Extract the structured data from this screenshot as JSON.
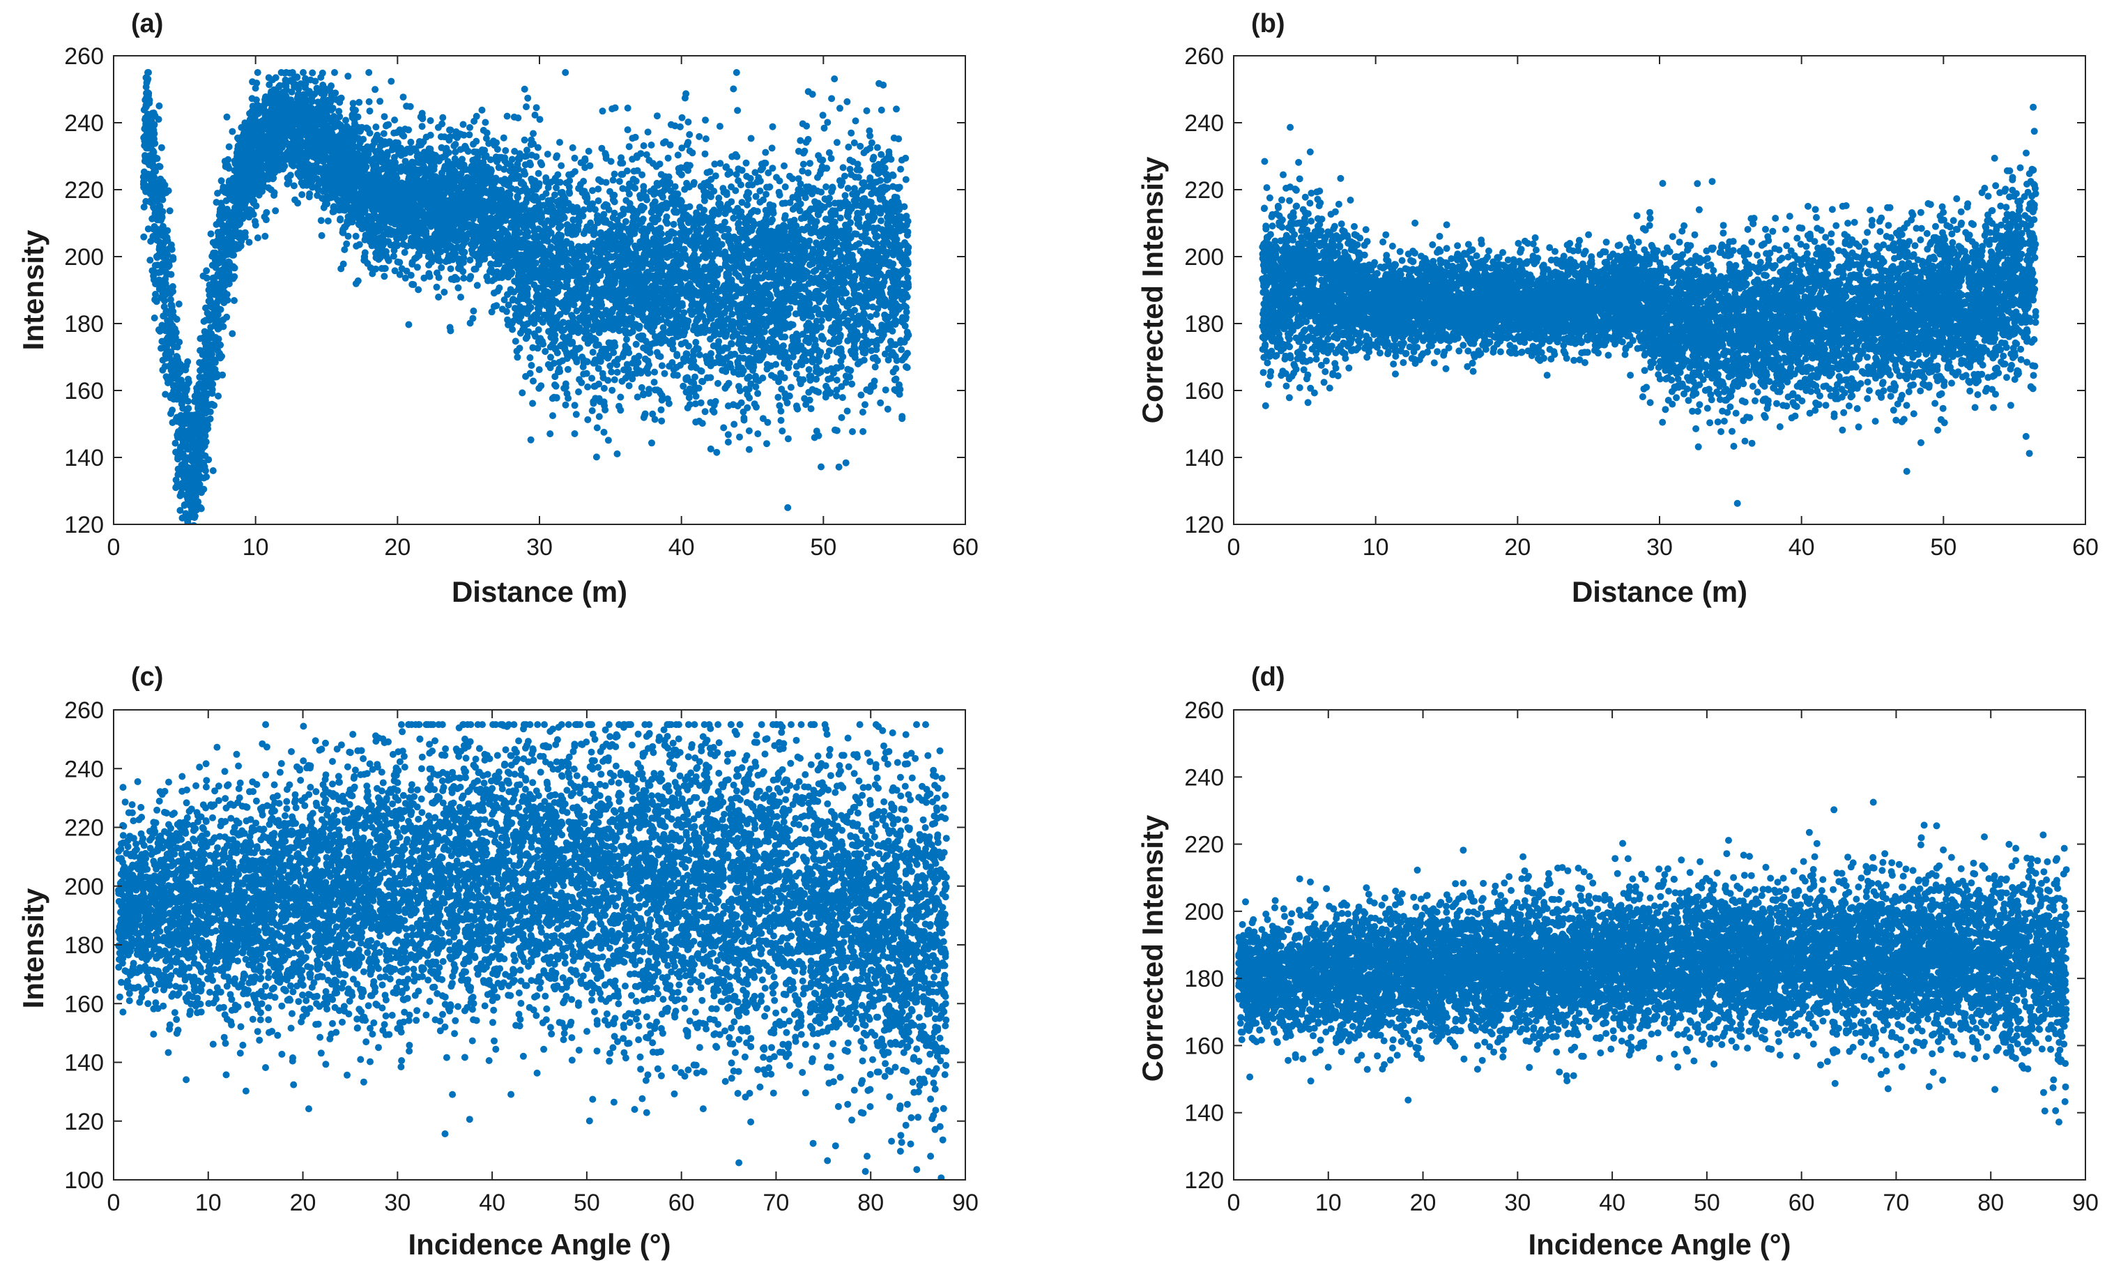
{
  "figure": {
    "marker_color": "#0072BD",
    "axis_color": "#262626"
  },
  "chart_data": [
    {
      "panel": "(a)",
      "type": "scatter",
      "xlabel": "Distance (m)",
      "ylabel": "Intensity",
      "xlim": [
        0,
        60
      ],
      "ylim": [
        120,
        260
      ],
      "xticks": [
        0,
        10,
        20,
        30,
        40,
        50,
        60
      ],
      "yticks": [
        120,
        140,
        160,
        180,
        200,
        220,
        240,
        260
      ],
      "grid": false,
      "series": [
        {
          "name": "points",
          "x": [
            2.1,
            2.3,
            2.6,
            3.0,
            3.5,
            4.0,
            4.6,
            5.2,
            5.6,
            6.2,
            6.8,
            7.5,
            8.3,
            9.2,
            10,
            11,
            12,
            13,
            14,
            15,
            16,
            17,
            18,
            19,
            20,
            21,
            22,
            23,
            24,
            25,
            26,
            27,
            28,
            29,
            30,
            31,
            32,
            33,
            34,
            35,
            36,
            37,
            38,
            39,
            40,
            41,
            42,
            43,
            44,
            45,
            46,
            47,
            48,
            49,
            50,
            51,
            52,
            53,
            54,
            55,
            56
          ],
          "y": [
            225,
            238,
            230,
            215,
            198,
            178,
            155,
            138,
            130,
            152,
            172,
            195,
            212,
            225,
            232,
            236,
            240,
            238,
            235,
            232,
            226,
            222,
            220,
            218,
            216,
            217,
            215,
            214,
            213,
            214,
            216,
            212,
            205,
            200,
            198,
            196,
            194,
            192,
            190,
            192,
            195,
            193,
            190,
            196,
            198,
            188,
            195,
            190,
            192,
            188,
            196,
            190,
            194,
            192,
            196,
            190,
            200,
            194,
            205,
            198,
            195
          ],
          "spread": [
            12,
            14,
            16,
            18,
            20,
            18,
            17,
            16,
            14,
            18,
            18,
            16,
            14,
            12,
            12,
            11,
            10,
            12,
            12,
            12,
            13,
            14,
            14,
            14,
            14,
            14,
            14,
            14,
            14,
            14,
            14,
            15,
            18,
            22,
            22,
            23,
            23,
            24,
            24,
            24,
            24,
            24,
            24,
            23,
            24,
            26,
            24,
            26,
            26,
            26,
            25,
            26,
            25,
            26,
            25,
            26,
            26,
            26,
            26,
            24,
            24
          ]
        }
      ]
    },
    {
      "panel": "(b)",
      "type": "scatter",
      "xlabel": "Distance (m)",
      "ylabel": "Corrected Intensity",
      "xlim": [
        0,
        60
      ],
      "ylim": [
        120,
        260
      ],
      "xticks": [
        0,
        10,
        20,
        30,
        40,
        50,
        60
      ],
      "yticks": [
        120,
        140,
        160,
        180,
        200,
        220,
        240,
        260
      ],
      "grid": false,
      "series": [
        {
          "name": "points",
          "x": [
            2.0,
            3,
            4,
            5,
            6,
            7,
            8,
            9,
            10,
            12,
            14,
            16,
            18,
            20,
            22,
            24,
            26,
            28,
            29,
            30,
            32,
            34,
            36,
            38,
            40,
            42,
            44,
            46,
            48,
            50,
            52,
            54,
            55,
            56,
            56.5
          ],
          "y": [
            188,
            190,
            192,
            193,
            190,
            188,
            188,
            187,
            186,
            186,
            186,
            186,
            186,
            186,
            185,
            186,
            186,
            188,
            188,
            182,
            180,
            178,
            180,
            180,
            182,
            180,
            184,
            182,
            184,
            186,
            186,
            190,
            195,
            195,
            200
          ],
          "spread": [
            15,
            16,
            18,
            18,
            16,
            14,
            12,
            11,
            10,
            9,
            9,
            9,
            9,
            9,
            9,
            9,
            9,
            10,
            11,
            14,
            15,
            16,
            16,
            15,
            16,
            16,
            16,
            16,
            16,
            16,
            16,
            18,
            18,
            20,
            24
          ]
        }
      ]
    },
    {
      "panel": "(c)",
      "type": "scatter",
      "xlabel": "Incidence Angle (°)",
      "ylabel": "Intensity",
      "xlim": [
        0,
        90
      ],
      "ylim": [
        100,
        260
      ],
      "xticks": [
        0,
        10,
        20,
        30,
        40,
        50,
        60,
        70,
        80,
        90
      ],
      "yticks": [
        100,
        120,
        140,
        160,
        180,
        200,
        220,
        240,
        260
      ],
      "grid": false,
      "series": [
        {
          "name": "points",
          "x": [
            0.5,
            5,
            10,
            15,
            20,
            25,
            30,
            35,
            40,
            45,
            50,
            55,
            60,
            65,
            70,
            75,
            80,
            85,
            88
          ],
          "y": [
            192,
            192,
            193,
            194,
            196,
            198,
            200,
            202,
            203,
            203,
            202,
            201,
            200,
            198,
            195,
            192,
            188,
            184,
            180
          ],
          "spread": [
            20,
            22,
            24,
            26,
            28,
            30,
            31,
            32,
            33,
            34,
            34,
            35,
            35,
            35,
            36,
            36,
            37,
            38,
            40
          ]
        }
      ]
    },
    {
      "panel": "(d)",
      "type": "scatter",
      "xlabel": "Incidence Angle (°)",
      "ylabel": "Corrected Intensity",
      "xlim": [
        0,
        90
      ],
      "ylim": [
        120,
        260
      ],
      "xticks": [
        0,
        10,
        20,
        30,
        40,
        50,
        60,
        70,
        80,
        90
      ],
      "yticks": [
        120,
        140,
        160,
        180,
        200,
        220,
        240,
        260
      ],
      "grid": false,
      "series": [
        {
          "name": "points",
          "x": [
            0.5,
            5,
            10,
            15,
            20,
            25,
            30,
            35,
            40,
            45,
            50,
            55,
            60,
            65,
            70,
            75,
            80,
            85,
            88
          ],
          "y": [
            180,
            180,
            181,
            182,
            182,
            183,
            184,
            184,
            185,
            185,
            186,
            186,
            186,
            186,
            186,
            186,
            186,
            184,
            180
          ],
          "spread": [
            10,
            11,
            12,
            12,
            13,
            13,
            14,
            14,
            14,
            15,
            15,
            15,
            16,
            16,
            16,
            17,
            17,
            18,
            20
          ]
        }
      ]
    }
  ]
}
